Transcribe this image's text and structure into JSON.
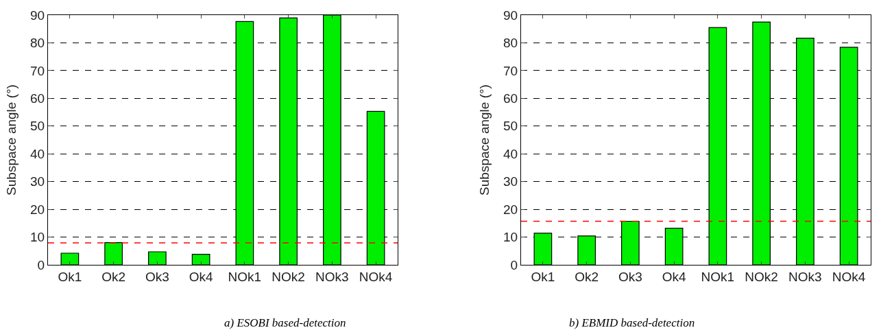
{
  "chart_data": [
    {
      "type": "bar",
      "ylabel": "Subspace angle (°)",
      "categories": [
        "Ok1",
        "Ok2",
        "Ok3",
        "Ok4",
        "NOk1",
        "NOk2",
        "NOk3",
        "NOk4"
      ],
      "series": [
        {
          "color": "#00ee00",
          "values": [
            4.2,
            8.0,
            4.7,
            3.8,
            87.7,
            89.0,
            90,
            55.3
          ]
        }
      ],
      "ylim": [
        0,
        90
      ],
      "yticks": [
        0,
        10,
        20,
        30,
        40,
        50,
        60,
        70,
        80,
        90
      ],
      "grid": "y",
      "ref_lines": [
        {
          "axis": "y",
          "value": 7.9,
          "color": "#ff0000",
          "line_style": "dashed"
        }
      ],
      "annotations": [
        "a) ESOBI based-detection"
      ]
    },
    {
      "type": "bar",
      "ylabel": "Subspace angle (°)",
      "categories": [
        "Ok1",
        "Ok2",
        "Ok3",
        "Ok4",
        "NOk1",
        "NOk2",
        "NOk3",
        "NOk4"
      ],
      "series": [
        {
          "color": "#00ee00",
          "values": [
            11.4,
            10.4,
            15.7,
            13.2,
            85.5,
            87.5,
            81.7,
            78.4
          ]
        }
      ],
      "ylim": [
        0,
        90
      ],
      "yticks": [
        0,
        10,
        20,
        30,
        40,
        50,
        60,
        70,
        80,
        90
      ],
      "grid": "y",
      "ref_lines": [
        {
          "axis": "y",
          "value": 15.7,
          "color": "#ff0000",
          "line_style": "dashed"
        }
      ],
      "annotations": [
        "b) EBMID based-detection"
      ]
    }
  ]
}
